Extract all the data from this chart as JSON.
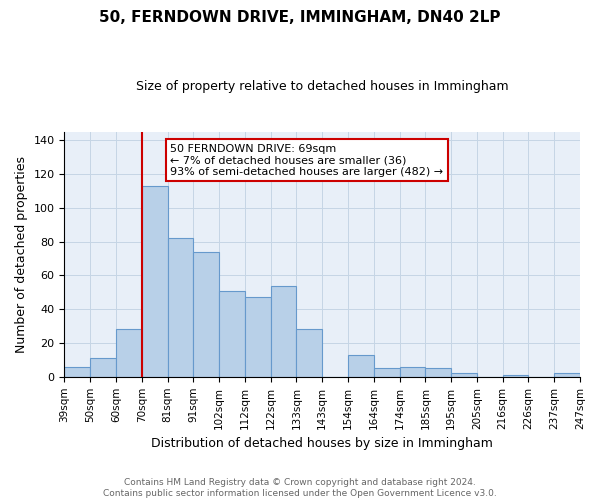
{
  "title": "50, FERNDOWN DRIVE, IMMINGHAM, DN40 2LP",
  "subtitle": "Size of property relative to detached houses in Immingham",
  "xlabel": "Distribution of detached houses by size in Immingham",
  "ylabel": "Number of detached properties",
  "bin_labels": [
    "39sqm",
    "50sqm",
    "60sqm",
    "70sqm",
    "81sqm",
    "91sqm",
    "102sqm",
    "112sqm",
    "122sqm",
    "133sqm",
    "143sqm",
    "154sqm",
    "164sqm",
    "174sqm",
    "185sqm",
    "195sqm",
    "205sqm",
    "216sqm",
    "226sqm",
    "237sqm",
    "247sqm"
  ],
  "bar_heights": [
    6,
    11,
    28,
    113,
    82,
    74,
    51,
    47,
    54,
    28,
    0,
    13,
    5,
    6,
    5,
    2,
    0,
    1,
    0,
    2
  ],
  "bar_color": "#b8d0e8",
  "bar_edge_color": "#6699cc",
  "marker_bin_index": 3,
  "marker_line_color": "#cc0000",
  "ylim": [
    0,
    145
  ],
  "yticks": [
    0,
    20,
    40,
    60,
    80,
    100,
    120,
    140
  ],
  "annotation_title": "50 FERNDOWN DRIVE: 69sqm",
  "annotation_line1": "← 7% of detached houses are smaller (36)",
  "annotation_line2": "93% of semi-detached houses are larger (482) →",
  "annotation_box_color": "#ffffff",
  "annotation_box_edge": "#cc0000",
  "footer_line1": "Contains HM Land Registry data © Crown copyright and database right 2024.",
  "footer_line2": "Contains public sector information licensed under the Open Government Licence v3.0.",
  "background_color": "#e8eff8",
  "plot_background_color": "#ffffff",
  "grid_color": "#c5d5e5",
  "title_fontsize": 11,
  "subtitle_fontsize": 9,
  "ylabel_fontsize": 9,
  "xlabel_fontsize": 9,
  "tick_fontsize": 8,
  "footer_fontsize": 6.5,
  "annotation_fontsize": 8
}
